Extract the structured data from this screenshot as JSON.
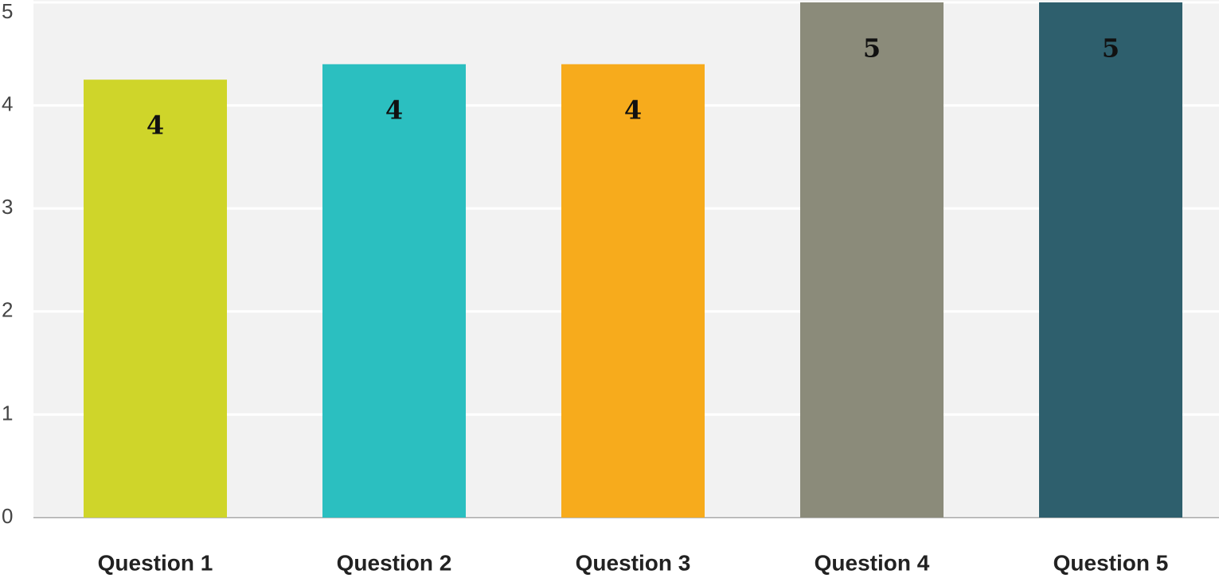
{
  "chart_data": {
    "type": "bar",
    "categories": [
      "Question 1",
      "Question 2",
      "Question 3",
      "Question 4",
      "Question 5"
    ],
    "values": [
      4.25,
      4.4,
      4.4,
      5,
      5
    ],
    "value_labels": [
      "4",
      "4",
      "4",
      "5",
      "5"
    ],
    "colors": [
      "#cfd52a",
      "#2bbfc0",
      "#f7ab1c",
      "#8b8b7a",
      "#2e5f6d"
    ],
    "ylim": [
      0,
      5
    ],
    "yticks": [
      0,
      1,
      2,
      3,
      4,
      5
    ],
    "grid": true
  }
}
